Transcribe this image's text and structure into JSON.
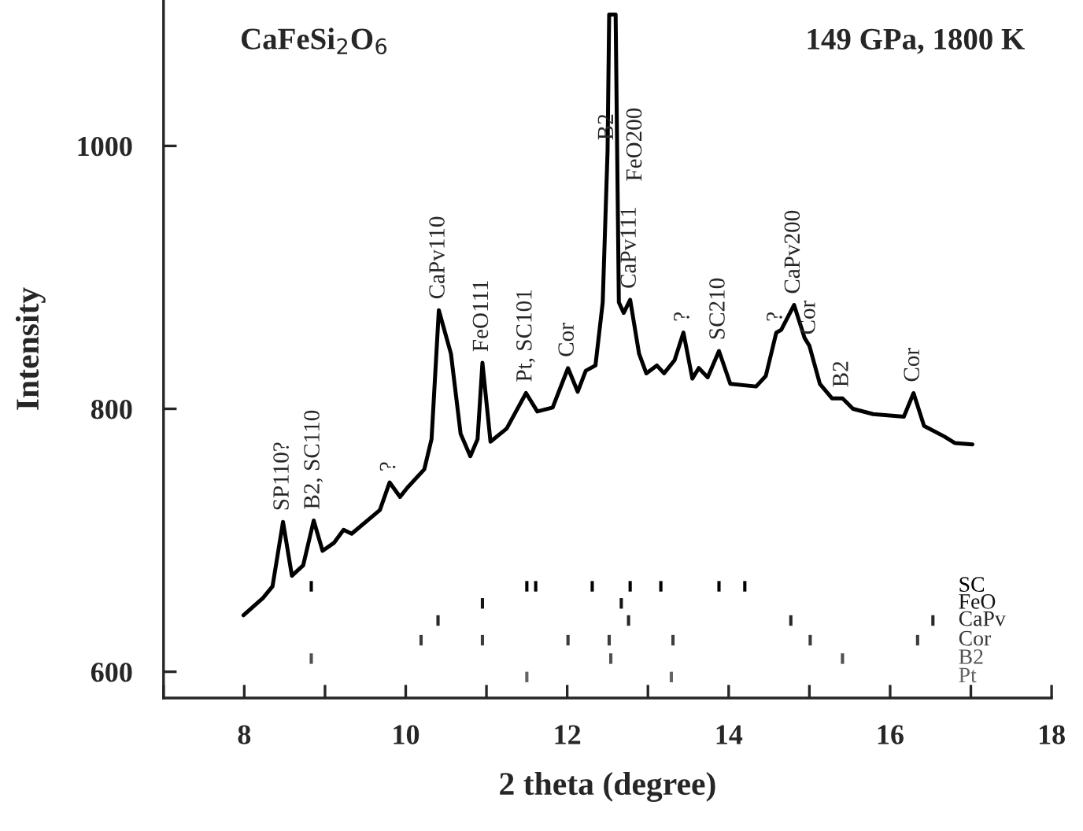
{
  "chart_data": {
    "type": "line",
    "xlabel": "2 theta (degree)",
    "ylabel": "Intensity",
    "xlim": [
      7,
      18
    ],
    "ylim": [
      580,
      1111
    ],
    "xticks": [
      {
        "value": 7,
        "label": null
      },
      8,
      {
        "value": 9,
        "label": null
      },
      10,
      {
        "value": 11,
        "label": null
      },
      12,
      {
        "value": 13,
        "label": null
      },
      14,
      {
        "value": 15,
        "label": null
      },
      16,
      {
        "value": 17,
        "label": null
      },
      18
    ],
    "yticks": [
      600,
      800,
      1000
    ],
    "grid": false,
    "series": [
      {
        "color": "#000000",
        "x": [
          7.99,
          8.23,
          8.35,
          8.48,
          8.59,
          8.73,
          8.86,
          8.97,
          9.11,
          9.23,
          9.33,
          9.68,
          9.8,
          9.93,
          10.02,
          10.23,
          10.32,
          10.41,
          10.56,
          10.68,
          10.8,
          10.89,
          10.95,
          11.05,
          11.25,
          11.49,
          11.63,
          11.82,
          12.01,
          12.13,
          12.23,
          12.35,
          12.44,
          12.5,
          12.52,
          12.56,
          12.6,
          12.64,
          12.7,
          12.78,
          12.89,
          12.98,
          13.11,
          13.2,
          13.33,
          13.44,
          13.55,
          13.63,
          13.74,
          13.88,
          14.02,
          14.34,
          14.46,
          14.59,
          14.65,
          14.81,
          14.94,
          15.0,
          15.13,
          15.28,
          15.41,
          15.54,
          15.79,
          16.17,
          16.29,
          16.42,
          16.67,
          16.8,
          17.02
        ],
        "values": [
          643,
          656,
          665,
          714,
          673,
          681,
          715,
          692,
          698,
          708,
          705,
          723,
          744,
          733,
          740,
          754,
          777,
          875,
          842,
          781,
          764,
          777,
          835,
          775,
          785,
          812,
          798,
          801,
          831,
          813,
          829,
          833,
          881,
          996,
          1100,
          null,
          1100,
          881,
          873,
          883,
          842,
          827,
          833,
          827,
          837,
          858,
          823,
          831,
          824,
          844,
          819,
          817,
          825,
          858,
          860,
          879,
          854,
          848,
          819,
          808,
          808,
          800,
          796,
          794,
          812,
          787,
          779,
          774,
          773
        ]
      },
      {
        "type": "bar",
        "name": "SC",
        "color": "#000000",
        "x": [
          8.83,
          11.5,
          11.61,
          12.31,
          12.78,
          13.16,
          13.88,
          14.2
        ],
        "base": [
          661,
          661,
          661,
          661,
          661,
          661,
          661,
          661
        ],
        "values": [
          8,
          8,
          8,
          8,
          8,
          8,
          8,
          8
        ]
      },
      {
        "type": "bar",
        "name": "FeO",
        "color": "#141414",
        "x": [
          10.95,
          12.67
        ],
        "base": [
          648,
          648
        ],
        "values": [
          8,
          8
        ]
      },
      {
        "type": "bar",
        "name": "CaPv",
        "color": "#282828",
        "x": [
          10.4,
          12.76,
          14.77,
          16.53
        ],
        "base": [
          635,
          635,
          635,
          635
        ],
        "values": [
          8,
          8,
          8,
          8
        ]
      },
      {
        "type": "bar",
        "name": "Cor",
        "color": "#3c3c3c",
        "x": [
          10.19,
          10.95,
          12.01,
          12.52,
          13.31,
          15.01,
          16.34
        ],
        "base": [
          620,
          620,
          620,
          620,
          620,
          620,
          620
        ],
        "values": [
          8,
          8,
          8,
          8,
          8,
          8,
          8
        ]
      },
      {
        "type": "bar",
        "name": "B2",
        "color": "#505050",
        "x": [
          8.83,
          12.54,
          15.41
        ],
        "base": [
          606,
          606,
          606
        ],
        "values": [
          8,
          8,
          8
        ]
      },
      {
        "type": "bar",
        "name": "Pt",
        "color": "#646464",
        "x": [
          11.5,
          13.29
        ],
        "base": [
          592,
          592
        ],
        "values": [
          8,
          8
        ]
      }
    ],
    "annotations": [
      "CaFeSi$_{2}$O$_{6}$",
      "149 GPa, 1800 K",
      "FeO200",
      {
        "text": "SP110?",
        "x": 8.48,
        "y": 714
      },
      {
        "text": "B2, SC110",
        "x": 8.86,
        "y": 715
      },
      {
        "text": "?",
        "x": 9.8,
        "y": 744
      },
      {
        "text": "CaPv110",
        "x": 10.41,
        "y": 875
      },
      {
        "text": "FeO111",
        "x": 10.95,
        "y": 835
      },
      {
        "text": "Pt, SC101",
        "x": 11.49,
        "y": 812
      },
      {
        "text": "Cor",
        "x": 12.01,
        "y": 831
      },
      {
        "text": "B2",
        "x": 12.5,
        "y": 996
      },
      {
        "text": "CaPv111",
        "x": 12.78,
        "y": 883
      },
      {
        "text": "?",
        "x": 13.44,
        "y": 858
      },
      {
        "text": "SC210",
        "x": 13.88,
        "y": 844
      },
      {
        "text": "?",
        "x": 14.59,
        "y": 858
      },
      {
        "text": "CaPv200",
        "x": 14.81,
        "y": 879
      },
      {
        "text": "Cor",
        "x": 15.0,
        "y": 848
      },
      {
        "text": "B2",
        "x": 15.41,
        "y": 808
      },
      {
        "text": "Cor",
        "x": 16.29,
        "y": 812
      }
    ]
  }
}
